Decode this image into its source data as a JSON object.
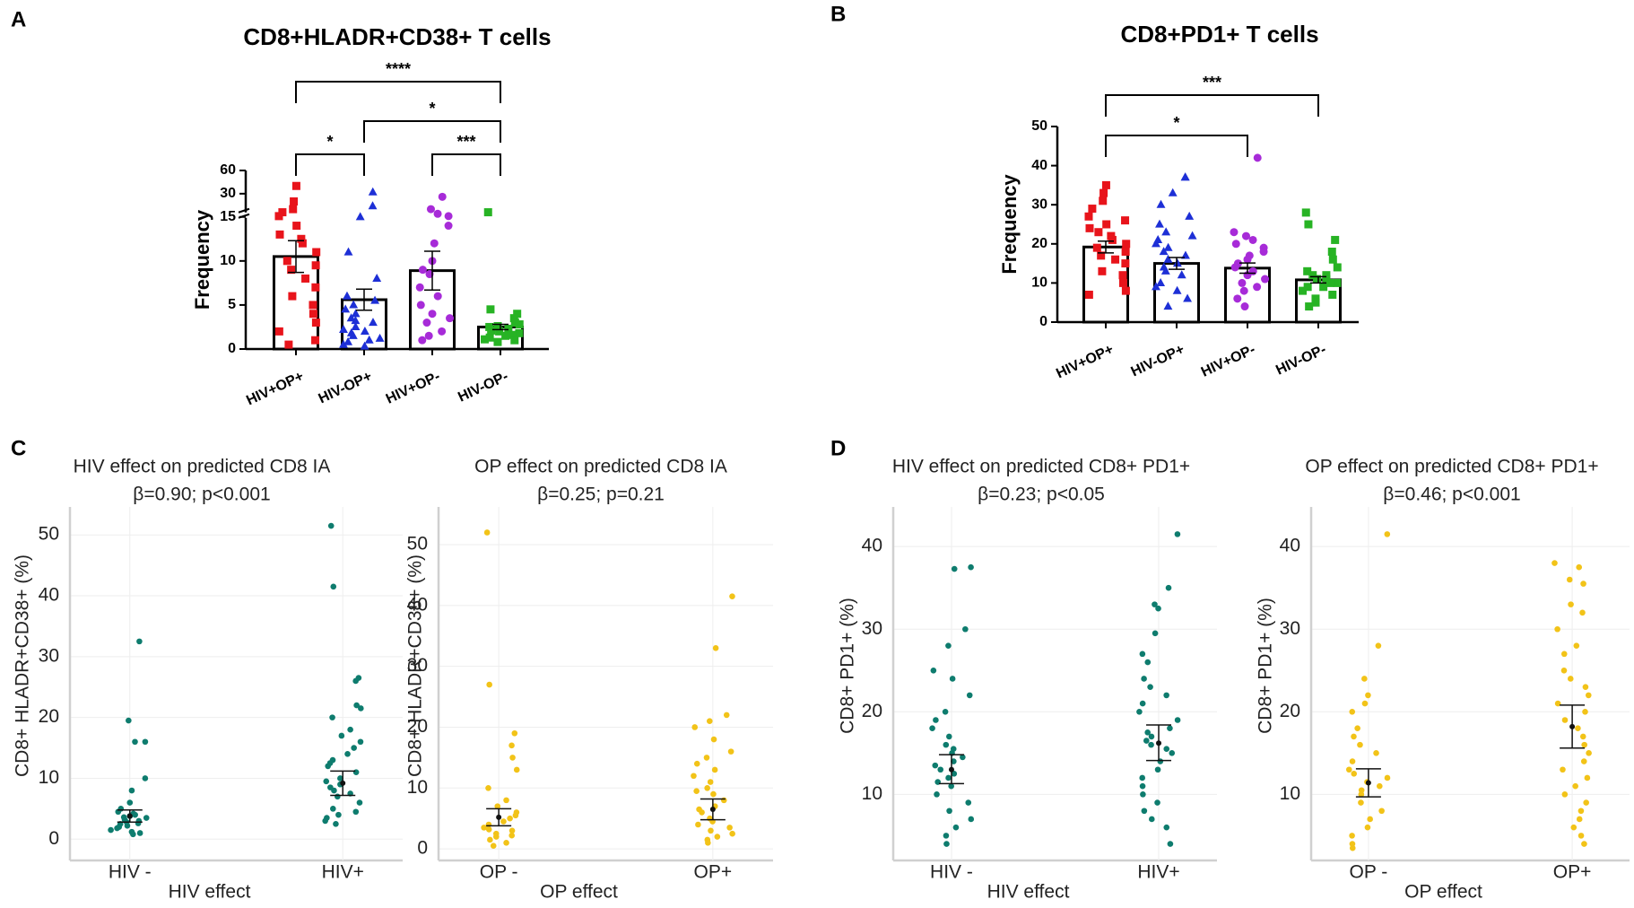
{
  "chart_data": [
    {
      "type": "bar",
      "panel": "A",
      "title": "CD8+HLADR+CD38+ T cells",
      "ylabel": "Frequency",
      "categories": [
        "HIV+OP+",
        "HIV-OP+",
        "HIV+OP-",
        "HIV-OP-"
      ],
      "colors": [
        "#e8141b",
        "#1d2fd6",
        "#a72bd8",
        "#27b324"
      ],
      "markers": [
        "square",
        "triangle",
        "circle",
        "square"
      ],
      "values": [
        10.5,
        5.6,
        8.9,
        2.5
      ],
      "errors": [
        1.8,
        1.2,
        2.2,
        0.3
      ],
      "points": [
        [
          40,
          25,
          20,
          18,
          15.5,
          14,
          13,
          12.5,
          12,
          11,
          10,
          9.5,
          9,
          8,
          7,
          6,
          5,
          4,
          3,
          2,
          1,
          0.5
        ],
        [
          32,
          22,
          15,
          11,
          8,
          6,
          5,
          4.5,
          4,
          3.5,
          3,
          2.5,
          2,
          1.8,
          1.5,
          1,
          0.8,
          0.5,
          0.3,
          5.5,
          3.2,
          2.2,
          1.2
        ],
        [
          28,
          20,
          17,
          15.5,
          14,
          12,
          10,
          9,
          7,
          6,
          4,
          3.5,
          3,
          2,
          1.5,
          1,
          8.5,
          5
        ],
        [
          18,
          4.5,
          4,
          3.5,
          3,
          2.8,
          2.5,
          2.3,
          2,
          1.8,
          1.6,
          1.5,
          1.3,
          1.1,
          1,
          0.8,
          2.6,
          2.1
        ]
      ],
      "ylim": [
        0,
        60
      ],
      "yticks": [
        0,
        5,
        10,
        15,
        30,
        60
      ],
      "axis_break": 15,
      "brackets": [
        {
          "from": 0,
          "to": 3,
          "label": "****"
        },
        {
          "from": 1,
          "to": 3,
          "label": "*"
        },
        {
          "from": 0,
          "to": 1,
          "label": "*"
        },
        {
          "from": 2,
          "to": 3,
          "label": "***"
        }
      ]
    },
    {
      "type": "bar",
      "panel": "B",
      "title": "CD8+PD1+ T cells",
      "ylabel": "Frequency",
      "categories": [
        "HIV+OP+",
        "HIV-OP+",
        "HIV+OP-",
        "HIV-OP-"
      ],
      "colors": [
        "#e8141b",
        "#1d2fd6",
        "#a72bd8",
        "#27b324"
      ],
      "markers": [
        "square",
        "triangle",
        "circle",
        "square"
      ],
      "values": [
        19.2,
        15,
        13.8,
        10.8
      ],
      "errors": [
        1.5,
        1.5,
        1.3,
        0.8
      ],
      "points": [
        [
          35,
          33,
          31,
          29,
          27,
          25,
          24,
          22,
          21,
          20,
          19,
          18,
          17,
          16,
          15,
          13,
          12,
          10,
          8,
          7,
          26,
          23
        ],
        [
          37,
          37,
          33,
          30,
          27,
          25,
          23,
          21,
          19,
          18,
          17,
          16,
          15,
          14,
          13,
          12,
          10,
          9,
          8,
          6,
          4,
          20,
          22
        ],
        [
          42,
          22,
          21,
          19,
          18,
          17,
          16,
          15,
          14,
          13,
          12,
          11,
          10,
          9,
          8,
          6,
          4,
          20,
          23
        ],
        [
          28,
          25,
          21,
          18,
          16,
          14,
          13,
          12,
          11,
          10,
          10,
          9,
          9,
          8,
          7,
          6,
          5,
          4,
          11,
          12
        ]
      ],
      "ylim": [
        0,
        50
      ],
      "yticks": [
        0,
        10,
        20,
        30,
        40,
        50
      ],
      "brackets": [
        {
          "from": 0,
          "to": 3,
          "label": "***"
        },
        {
          "from": 0,
          "to": 2,
          "label": "*"
        }
      ]
    },
    {
      "type": "strip",
      "panel": "C",
      "title": "HIV effect on predicted CD8 IA",
      "subtitle": "β=0.90; p<0.001",
      "xlabel": "HIV effect",
      "ylabel": "CD8+ HLADR+CD38+ (%)",
      "categories": [
        "HIV -",
        "HIV+"
      ],
      "color": "#0e7c6e",
      "points": [
        [
          32.5,
          19.5,
          16,
          16,
          10,
          8,
          6,
          5,
          4.5,
          4,
          3.8,
          3.5,
          3.2,
          3,
          2.8,
          2.5,
          2.2,
          2,
          1.8,
          1.5,
          1.2,
          1,
          0.8,
          4.2,
          3.6,
          2.6
        ],
        [
          51.5,
          41.5,
          26.5,
          26,
          22,
          21.5,
          20,
          18,
          17,
          16,
          15,
          14,
          13,
          12,
          11,
          10,
          9,
          8,
          7.5,
          7,
          6,
          5,
          4.5,
          4,
          3.5,
          3,
          2.5,
          12.5,
          9.5,
          8.5
        ]
      ],
      "means": [
        3.8,
        9.2
      ],
      "ci": [
        [
          2.8,
          4.8
        ],
        [
          7.2,
          11.2
        ]
      ],
      "ylim": [
        -3.5,
        54.6
      ],
      "yticks": [
        0,
        10,
        20,
        30,
        40,
        50
      ],
      "grid": true
    },
    {
      "type": "strip",
      "title": "OP effect on predicted CD8 IA",
      "subtitle": "β=0.25; p=0.21",
      "xlabel": "OP effect",
      "ylabel": "CD8+ HLADR+CD38+ (%)",
      "categories": [
        "OP -",
        "OP+"
      ],
      "color": "#f2c318",
      "points": [
        [
          52,
          27,
          19,
          17,
          15,
          13,
          10,
          8,
          7,
          6,
          5,
          4.5,
          4,
          3.5,
          3,
          2.5,
          2,
          1.5,
          1,
          0.5,
          5.5,
          3.2,
          2.2
        ],
        [
          41.5,
          33,
          22,
          21,
          20,
          18,
          16,
          15,
          14,
          12,
          11,
          10,
          9,
          8,
          7,
          6,
          5,
          4.5,
          4,
          3.5,
          3,
          2.5,
          2,
          1.5,
          1,
          13,
          9.5,
          6.5
        ]
      ],
      "means": [
        5.2,
        6.5
      ],
      "ci": [
        [
          3.8,
          6.6
        ],
        [
          4.8,
          8.2
        ]
      ],
      "ylim": [
        -1.9,
        56.2
      ],
      "yticks": [
        0,
        10,
        20,
        30,
        40,
        50
      ],
      "grid": true
    },
    {
      "type": "strip",
      "panel": "D",
      "title": "HIV effect on predicted CD8+ PD1+",
      "subtitle": "β=0.23; p<0.05",
      "xlabel": "HIV effect",
      "ylabel": "CD8+ PD1+ (%)",
      "categories": [
        "HIV -",
        "HIV+"
      ],
      "color": "#0e7c6e",
      "points": [
        [
          37.5,
          37.3,
          30,
          28,
          25,
          24,
          22,
          20,
          19,
          18,
          17,
          16,
          15,
          14.5,
          14,
          13,
          12,
          11,
          10,
          9,
          8,
          7,
          6,
          5,
          4,
          15.5,
          13.5,
          11.5,
          12.5
        ],
        [
          41.5,
          35,
          33,
          32.5,
          29.5,
          27,
          26,
          24,
          23,
          22,
          21,
          20,
          19,
          18,
          17,
          16,
          15,
          14,
          13,
          12,
          11,
          10,
          9,
          8,
          7,
          6,
          4,
          17.5,
          15.5,
          16.5
        ]
      ],
      "means": [
        13,
        16.2
      ],
      "ci": [
        [
          11.3,
          14.8
        ],
        [
          14.1,
          18.4
        ]
      ],
      "ylim": [
        2,
        44.8
      ],
      "yticks": [
        10,
        20,
        30,
        40
      ],
      "grid": true
    },
    {
      "type": "strip",
      "title": "OP effect on predicted CD8+ PD1+",
      "subtitle": "β=0.46; p<0.001",
      "xlabel": "OP effect",
      "ylabel": "CD8+ PD1+ (%)",
      "categories": [
        "OP -",
        "OP+"
      ],
      "color": "#f2c318",
      "points": [
        [
          41.5,
          28,
          24,
          22,
          21,
          20,
          18,
          17,
          16,
          15,
          14,
          13,
          12,
          11,
          10,
          9,
          8,
          7,
          6,
          5,
          4,
          3.5,
          11.5,
          12.5,
          10.5
        ],
        [
          38,
          37.5,
          36,
          35.5,
          33,
          32,
          30,
          28,
          27,
          25,
          24,
          23,
          22,
          21,
          20,
          19,
          18,
          17,
          16,
          15,
          14,
          13,
          12,
          11,
          10,
          9,
          8,
          7,
          6,
          5,
          4
        ]
      ],
      "means": [
        11.4,
        18.2
      ],
      "ci": [
        [
          9.7,
          13.1
        ],
        [
          15.6,
          20.8
        ]
      ],
      "ylim": [
        2,
        44.8
      ],
      "yticks": [
        10,
        20,
        30,
        40
      ],
      "grid": true
    }
  ]
}
